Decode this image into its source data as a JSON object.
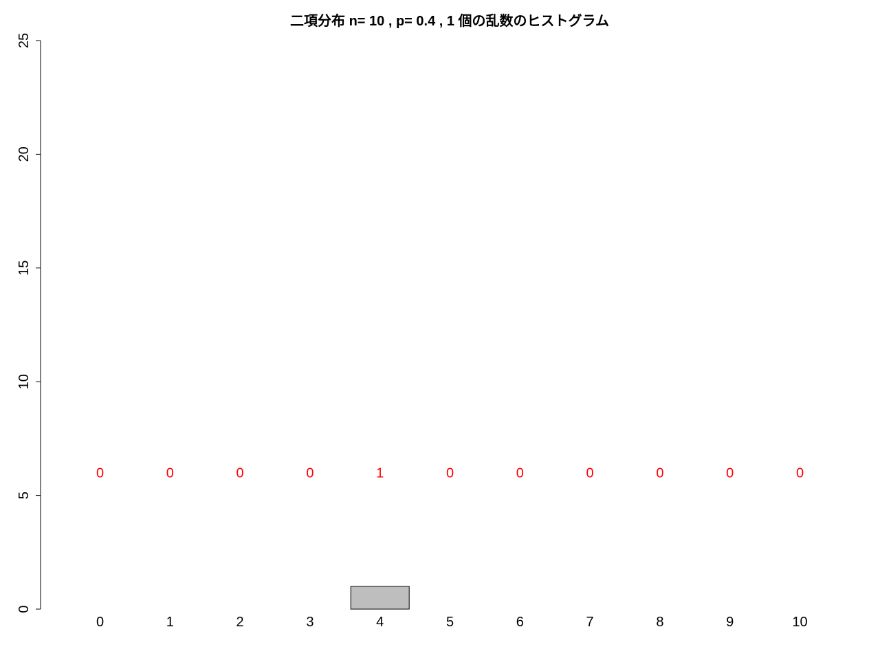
{
  "chart_data": {
    "type": "bar",
    "title": "二項分布 n= 10 , p= 0.4 , 1 個の乱数のヒストグラム",
    "xlabel": "",
    "ylabel": "",
    "categories": [
      "0",
      "1",
      "2",
      "3",
      "4",
      "5",
      "6",
      "7",
      "8",
      "9",
      "10"
    ],
    "values": [
      0,
      0,
      0,
      0,
      1,
      0,
      0,
      0,
      0,
      0,
      0
    ],
    "count_labels": [
      "0",
      "0",
      "0",
      "0",
      "1",
      "0",
      "0",
      "0",
      "0",
      "0",
      "0"
    ],
    "count_label_y": 6,
    "ylim": [
      0,
      25
    ],
    "yticks": [
      0,
      5,
      10,
      15,
      20,
      25
    ],
    "grid": false,
    "colors": {
      "bar_fill": "#bebebe",
      "bar_stroke": "#000000",
      "count_label": "#ff0000",
      "axis": "#000000"
    }
  }
}
